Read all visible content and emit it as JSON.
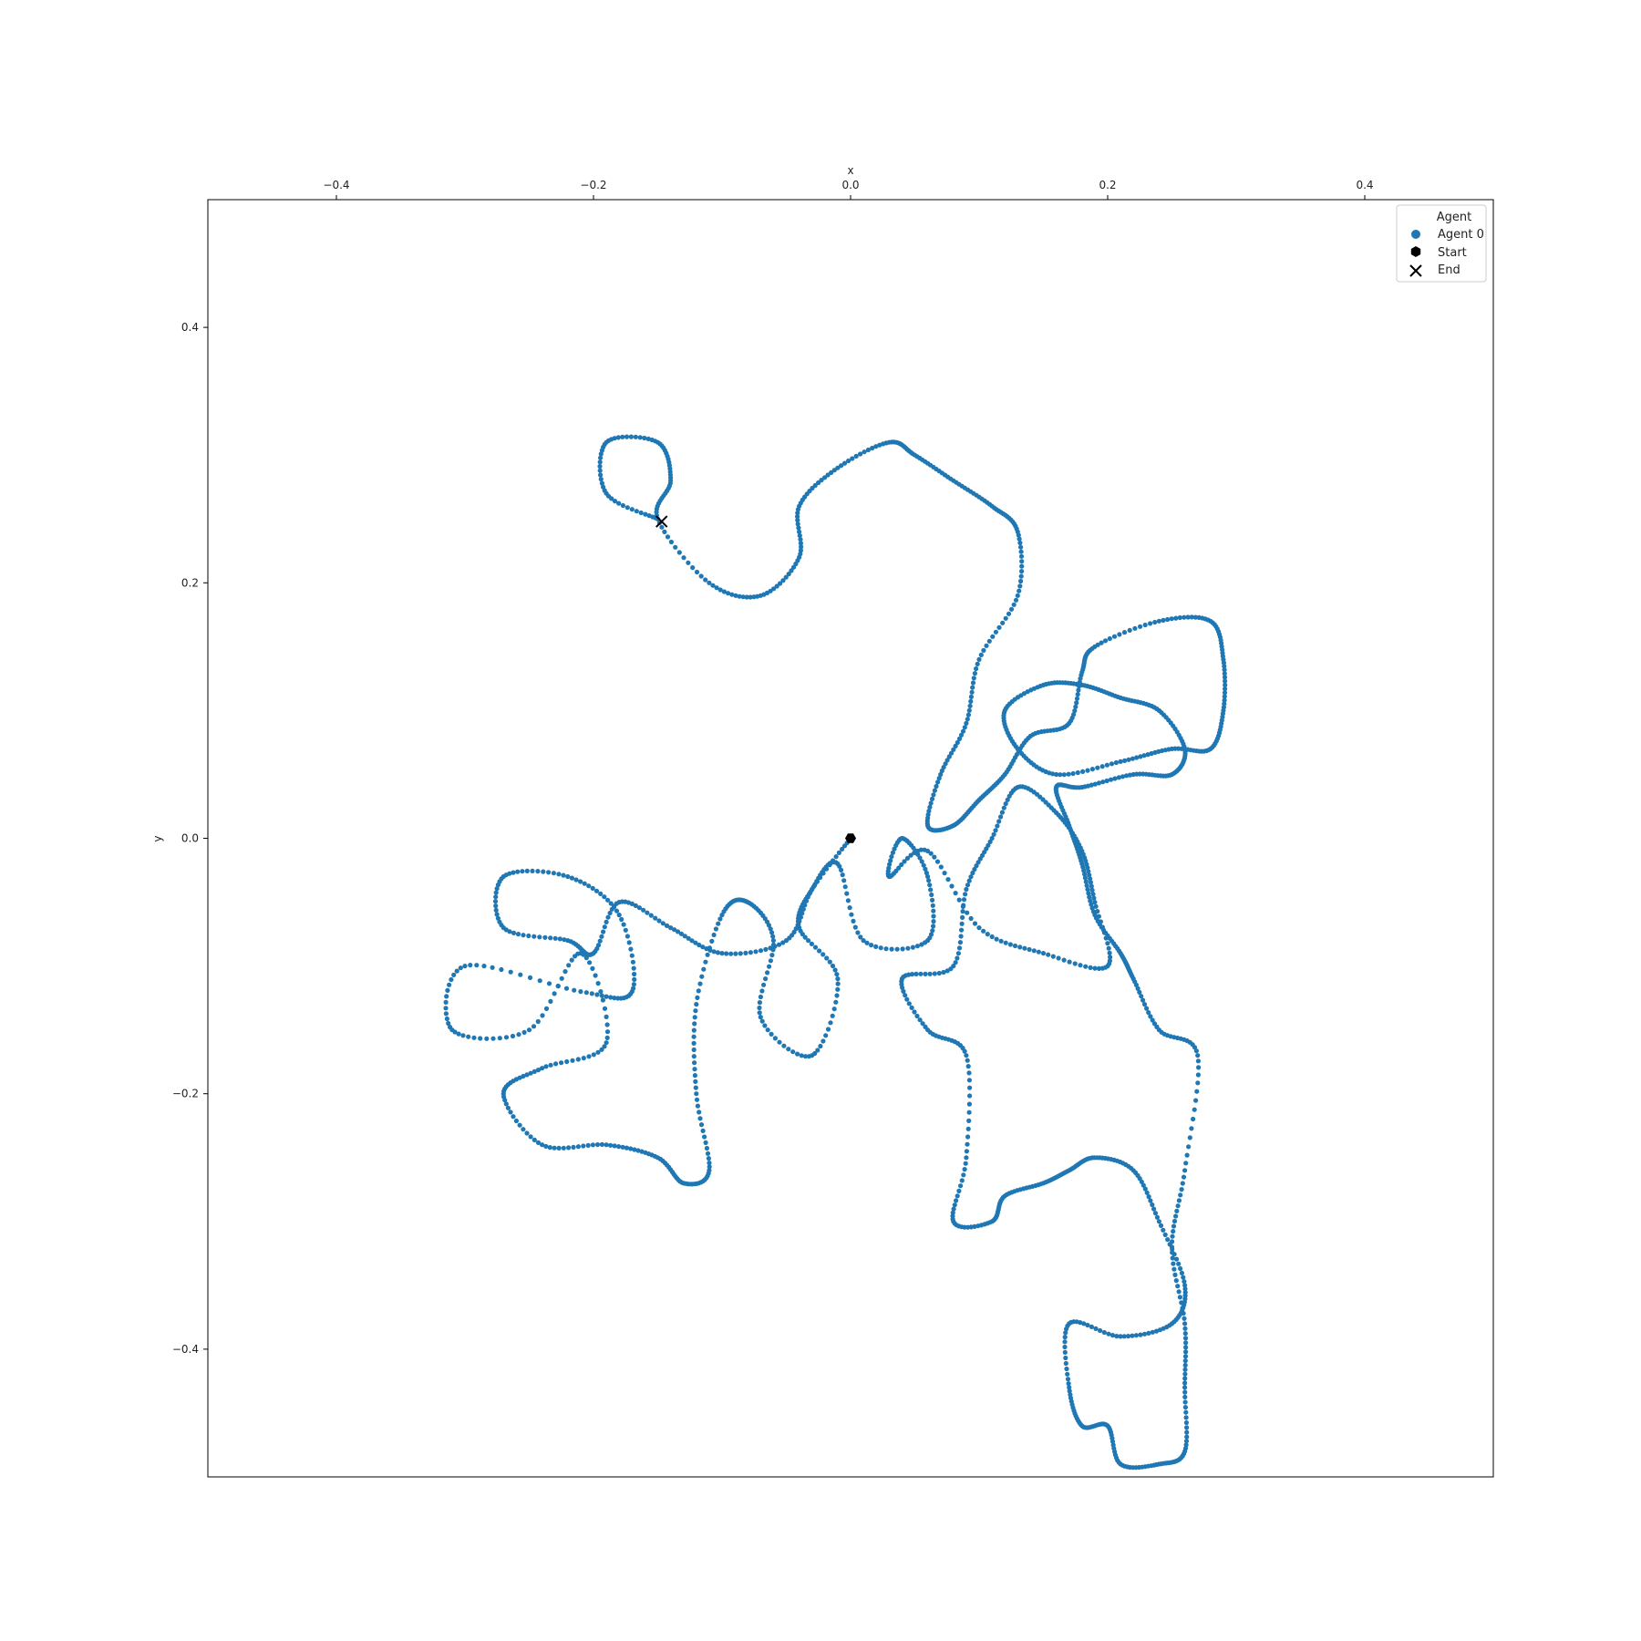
{
  "chart_data": {
    "type": "scatter",
    "title": "",
    "xlabel": "x",
    "ylabel": "y",
    "xlim": [
      -0.5,
      0.5
    ],
    "ylim": [
      0.5,
      -0.5
    ],
    "y_inverted": true,
    "x_axis_position": "top",
    "grid": false,
    "x_ticks": [
      -0.4,
      -0.2,
      0.0,
      0.2,
      0.4
    ],
    "x_tick_labels": [
      "−0.4",
      "−0.2",
      "0.0",
      "0.2",
      "0.4"
    ],
    "y_ticks": [
      -0.4,
      -0.2,
      0.0,
      0.2,
      0.4
    ],
    "y_tick_labels": [
      "−0.4",
      "−0.2",
      "0.0",
      "0.2",
      "0.4"
    ],
    "legend": {
      "title": "Agent",
      "placement": "top-right",
      "entries": [
        {
          "label": "Agent 0",
          "marker": "circle",
          "color": "#1f77b4"
        },
        {
          "label": "Start",
          "marker": "hexagon",
          "color": "#000000"
        },
        {
          "label": "End",
          "marker": "x",
          "color": "#000000"
        }
      ]
    },
    "series": [
      {
        "name": "Agent 0",
        "color": "#1f77b4",
        "marker": "circle",
        "points": [
          [
            0.0,
            0.0
          ],
          [
            -0.03,
            -0.04
          ],
          [
            -0.05,
            -0.08
          ],
          [
            -0.1,
            -0.09
          ],
          [
            -0.14,
            -0.07
          ],
          [
            -0.18,
            -0.05
          ],
          [
            -0.2,
            -0.09
          ],
          [
            -0.22,
            -0.08
          ],
          [
            -0.27,
            -0.07
          ],
          [
            -0.27,
            -0.03
          ],
          [
            -0.22,
            -0.03
          ],
          [
            -0.18,
            -0.06
          ],
          [
            -0.17,
            -0.12
          ],
          [
            -0.21,
            -0.12
          ],
          [
            -0.3,
            -0.1
          ],
          [
            -0.31,
            -0.15
          ],
          [
            -0.25,
            -0.15
          ],
          [
            -0.21,
            -0.09
          ],
          [
            -0.19,
            -0.16
          ],
          [
            -0.24,
            -0.18
          ],
          [
            -0.27,
            -0.2
          ],
          [
            -0.24,
            -0.24
          ],
          [
            -0.19,
            -0.24
          ],
          [
            -0.15,
            -0.25
          ],
          [
            -0.13,
            -0.27
          ],
          [
            -0.11,
            -0.26
          ],
          [
            -0.12,
            -0.2
          ],
          [
            -0.12,
            -0.13
          ],
          [
            -0.1,
            -0.06
          ],
          [
            -0.08,
            -0.05
          ],
          [
            -0.06,
            -0.08
          ],
          [
            -0.07,
            -0.14
          ],
          [
            -0.03,
            -0.17
          ],
          [
            -0.01,
            -0.11
          ],
          [
            -0.04,
            -0.07
          ],
          [
            -0.03,
            -0.04
          ],
          [
            -0.01,
            -0.02
          ],
          [
            0.01,
            -0.08
          ],
          [
            0.06,
            -0.08
          ],
          [
            0.06,
            -0.03
          ],
          [
            0.04,
            0.0
          ],
          [
            0.03,
            -0.03
          ],
          [
            0.06,
            -0.01
          ],
          [
            0.1,
            -0.07
          ],
          [
            0.15,
            -0.09
          ],
          [
            0.2,
            -0.1
          ],
          [
            0.19,
            -0.05
          ],
          [
            0.18,
            -0.01
          ],
          [
            0.16,
            0.02
          ],
          [
            0.13,
            0.04
          ],
          [
            0.11,
            0.0
          ],
          [
            0.09,
            -0.04
          ],
          [
            0.08,
            -0.1
          ],
          [
            0.04,
            -0.11
          ],
          [
            0.06,
            -0.15
          ],
          [
            0.09,
            -0.17
          ],
          [
            0.09,
            -0.25
          ],
          [
            0.08,
            -0.3
          ],
          [
            0.11,
            -0.3
          ],
          [
            0.12,
            -0.28
          ],
          [
            0.15,
            -0.27
          ],
          [
            0.17,
            -0.26
          ],
          [
            0.19,
            -0.25
          ],
          [
            0.22,
            -0.26
          ],
          [
            0.24,
            -0.3
          ],
          [
            0.26,
            -0.35
          ],
          [
            0.25,
            -0.38
          ],
          [
            0.21,
            -0.39
          ],
          [
            0.17,
            -0.38
          ],
          [
            0.17,
            -0.43
          ],
          [
            0.18,
            -0.46
          ],
          [
            0.2,
            -0.46
          ],
          [
            0.21,
            -0.49
          ],
          [
            0.24,
            -0.49
          ],
          [
            0.26,
            -0.48
          ],
          [
            0.26,
            -0.43
          ],
          [
            0.26,
            -0.38
          ],
          [
            0.25,
            -0.32
          ],
          [
            0.26,
            -0.26
          ],
          [
            0.27,
            -0.17
          ],
          [
            0.24,
            -0.15
          ],
          [
            0.22,
            -0.11
          ],
          [
            0.21,
            -0.09
          ],
          [
            0.19,
            -0.06
          ],
          [
            0.18,
            -0.02
          ],
          [
            0.17,
            0.01
          ],
          [
            0.16,
            0.04
          ],
          [
            0.18,
            0.04
          ],
          [
            0.22,
            0.05
          ],
          [
            0.25,
            0.05
          ],
          [
            0.26,
            0.07
          ],
          [
            0.24,
            0.1
          ],
          [
            0.21,
            0.11
          ],
          [
            0.18,
            0.12
          ],
          [
            0.15,
            0.12
          ],
          [
            0.12,
            0.1
          ],
          [
            0.13,
            0.07
          ],
          [
            0.16,
            0.05
          ],
          [
            0.21,
            0.06
          ],
          [
            0.25,
            0.07
          ],
          [
            0.28,
            0.07
          ],
          [
            0.29,
            0.1
          ],
          [
            0.29,
            0.14
          ],
          [
            0.28,
            0.17
          ],
          [
            0.24,
            0.17
          ],
          [
            0.19,
            0.15
          ],
          [
            0.18,
            0.13
          ],
          [
            0.17,
            0.09
          ],
          [
            0.14,
            0.08
          ],
          [
            0.12,
            0.05
          ],
          [
            0.1,
            0.03
          ],
          [
            0.08,
            0.01
          ],
          [
            0.06,
            0.01
          ],
          [
            0.07,
            0.05
          ],
          [
            0.09,
            0.09
          ],
          [
            0.1,
            0.14
          ],
          [
            0.13,
            0.19
          ],
          [
            0.13,
            0.24
          ],
          [
            0.11,
            0.26
          ],
          [
            0.08,
            0.28
          ],
          [
            0.05,
            0.3
          ],
          [
            0.03,
            0.31
          ],
          [
            -0.01,
            0.29
          ],
          [
            -0.04,
            0.26
          ],
          [
            -0.04,
            0.22
          ],
          [
            -0.07,
            0.19
          ],
          [
            -0.11,
            0.2
          ],
          [
            -0.15,
            0.25
          ],
          [
            -0.14,
            0.28
          ],
          [
            -0.15,
            0.31
          ],
          [
            -0.19,
            0.31
          ],
          [
            -0.19,
            0.27
          ],
          [
            -0.15,
            0.25
          ]
        ]
      }
    ],
    "start": {
      "label": "Start",
      "x": 0.0,
      "y": 0.0,
      "marker": "hexagon",
      "color": "#000000"
    },
    "end": {
      "label": "End",
      "x": -0.147,
      "y": 0.248,
      "marker": "x",
      "color": "#000000"
    }
  }
}
